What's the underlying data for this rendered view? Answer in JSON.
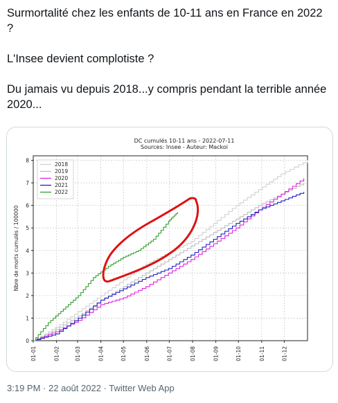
{
  "tweet": {
    "lines": [
      "Surmortalité chez les enfants de 10-11 ans en France en 2022 ?",
      "L'Insee devient complotiste ?",
      "Du jamais vu depuis 2018...y compris pendant la terrible année 2020..."
    ],
    "time": "3:19 PM",
    "separator": "·",
    "date": "22 août 2022",
    "source": "Twitter Web App"
  },
  "chart_data": {
    "type": "line",
    "title": "DC cumulés 10-11 ans  - 2022-07-11",
    "subtitle": "Sources: Insee - Auteur: Mackoi",
    "ylabel": "Nbre de morts cumulés / 100000",
    "xlabel": "",
    "xticks": [
      "01-01",
      "01-02",
      "01-03",
      "01-04",
      "01-05",
      "01-06",
      "01-07",
      "01-08",
      "01-09",
      "01-10",
      "01-11",
      "01-12"
    ],
    "yticks": [
      0,
      1,
      2,
      3,
      4,
      5,
      6,
      7,
      8
    ],
    "ylim": [
      0,
      8.2
    ],
    "xlim_days": [
      0,
      365
    ],
    "grid": true,
    "legend_position": "top-left",
    "series": [
      {
        "name": "2018",
        "color": "#d0d0d0",
        "x": [
          0,
          30,
          60,
          90,
          120,
          150,
          180,
          210,
          240,
          270,
          300,
          330,
          365
        ],
        "values": [
          0,
          0.6,
          1.3,
          2.0,
          2.7,
          3.4,
          3.9,
          4.4,
          5.2,
          6.0,
          6.7,
          7.4,
          8.0
        ]
      },
      {
        "name": "2019",
        "color": "#bdbdbd",
        "x": [
          0,
          30,
          60,
          90,
          120,
          150,
          180,
          210,
          240,
          270,
          300,
          330,
          360
        ],
        "values": [
          0,
          0.5,
          1.1,
          1.8,
          2.4,
          3.0,
          3.6,
          4.2,
          4.8,
          5.4,
          6.0,
          6.5,
          7.0
        ]
      },
      {
        "name": "2020",
        "color": "#e020e0",
        "x": [
          0,
          30,
          60,
          90,
          120,
          150,
          180,
          210,
          240,
          270,
          300,
          330,
          360
        ],
        "values": [
          0,
          0.4,
          0.9,
          1.6,
          1.9,
          2.4,
          3.0,
          3.6,
          4.3,
          5.0,
          5.8,
          6.5,
          7.2
        ]
      },
      {
        "name": "2021",
        "color": "#2020c0",
        "x": [
          0,
          30,
          60,
          90,
          120,
          150,
          180,
          210,
          240,
          270,
          300,
          330,
          360
        ],
        "values": [
          0,
          0.3,
          1.0,
          1.8,
          2.3,
          2.8,
          3.2,
          3.8,
          4.5,
          5.2,
          5.8,
          6.2,
          6.6
        ]
      },
      {
        "name": "2022",
        "color": "#30a030",
        "x": [
          0,
          20,
          40,
          60,
          80,
          100,
          120,
          140,
          160,
          180,
          192
        ],
        "values": [
          0,
          0.8,
          1.4,
          2.0,
          2.8,
          3.3,
          3.7,
          4.0,
          4.5,
          5.3,
          5.7
        ]
      }
    ]
  },
  "annotation": {
    "shape": "hand-drawn ellipse",
    "color": "#dd1111"
  }
}
